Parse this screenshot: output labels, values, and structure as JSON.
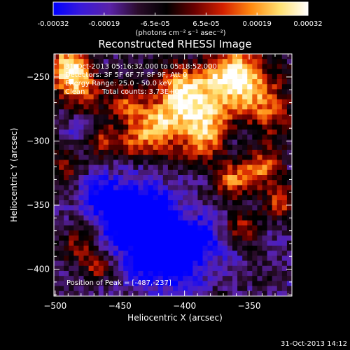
{
  "chart_data": {
    "type": "heatmap",
    "title": "Reconstructed RHESSI Image",
    "xlabel": "Heliocentric X (arcsec)",
    "ylabel": "Heliocentric Y (arcsec)",
    "xlim": [
      -501,
      -317
    ],
    "ylim": [
      -421,
      -232
    ],
    "x_ticks": [
      -500,
      -450,
      -400,
      -350
    ],
    "y_ticks": [
      -250,
      -300,
      -350,
      -400
    ],
    "colorbar": {
      "range": [
        -0.00032,
        0.00032
      ],
      "ticks": [
        "-0.00032",
        "-0.00019",
        "-6.5e-05",
        "6.5e-05",
        "0.00019",
        "0.00032"
      ],
      "units": "(photons cm⁻² s⁻¹ asec⁻²)",
      "colors": [
        "#0000ff",
        "#3a1ad8",
        "#5a22a8",
        "#2a0c2a",
        "#000000",
        "#6a0000",
        "#d42000",
        "#ff8a10",
        "#ffe070",
        "#ffffff"
      ]
    },
    "annotations": {
      "time_range": "31-Oct-2013 05:16:32.000 to 05:18:52.000",
      "detectors": "Detectors: 3F 5F 6F 7F 8F 9F, Att 0",
      "energy": "Energy Range: 25.0 - 50.0 keV",
      "method": "Clean",
      "total_counts": "Total counts: 3.73E+03",
      "peak": "Position of Peak = [-487,-237]"
    },
    "plot_date": "31-Oct-2013 14:12"
  }
}
